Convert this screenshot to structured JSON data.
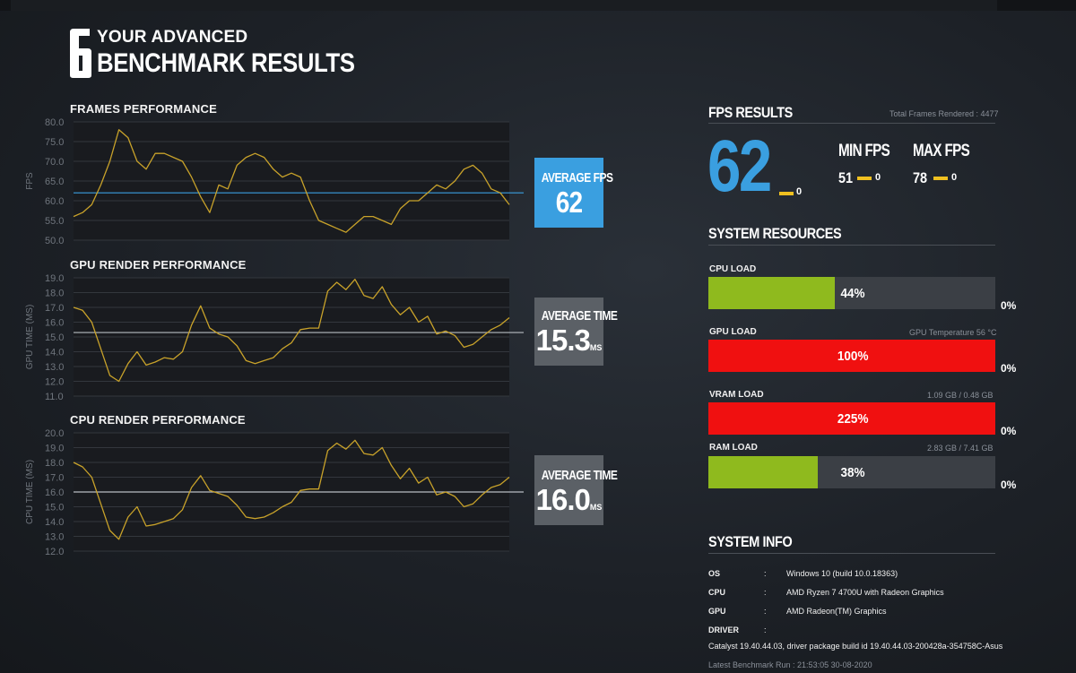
{
  "header": {
    "logo_digit": "6",
    "title_line1": "YOUR ADVANCED",
    "title_line2": "BENCHMARK RESULTS"
  },
  "colors": {
    "accent_blue": "#3a9fe0",
    "trace_gold": "#c8a22a",
    "load_green": "#8fba1e",
    "load_red": "#f01010",
    "badge_grey": "#5b6066"
  },
  "charts": {
    "frames": {
      "title": "FRAMES PERFORMANCE",
      "badge_label": "AVERAGE FPS",
      "badge_value": "62",
      "badge_unit": ""
    },
    "gpu": {
      "title": "GPU RENDER PERFORMANCE",
      "badge_label": "AVERAGE TIME",
      "badge_value": "15.3",
      "badge_unit": "MS"
    },
    "cpu": {
      "title": "CPU RENDER PERFORMANCE",
      "badge_label": "AVERAGE TIME",
      "badge_value": "16.0",
      "badge_unit": "MS"
    }
  },
  "chart_data": [
    {
      "type": "line",
      "id": "frames",
      "title": "FRAMES PERFORMANCE",
      "ylabel": "FPS",
      "ylim": [
        50,
        80
      ],
      "yticks": [
        "80.0",
        "75.0",
        "70.0",
        "65.0",
        "60.0",
        "55.0",
        "50.0"
      ],
      "grid": true,
      "average": 62,
      "x": [
        0,
        10,
        20,
        30,
        40,
        50,
        60,
        70,
        80,
        90,
        100,
        110,
        120,
        130,
        140,
        150,
        160,
        170,
        180,
        190,
        200,
        210,
        220,
        230,
        240,
        250,
        260,
        270,
        280,
        290,
        300,
        310,
        320,
        330,
        340,
        350,
        360,
        370,
        380,
        390,
        400,
        410,
        420,
        430,
        440,
        450,
        460,
        470,
        480
      ],
      "values": [
        56,
        57,
        59,
        64,
        70,
        78,
        76,
        70,
        68,
        72,
        72,
        71,
        70,
        66,
        61,
        57,
        64,
        63,
        69,
        71,
        72,
        71,
        68,
        66,
        67,
        66,
        60,
        55,
        54,
        53,
        52,
        54,
        56,
        56,
        55,
        54,
        58,
        60,
        60,
        62,
        64,
        63,
        65,
        68,
        69,
        67,
        63,
        62,
        59
      ]
    },
    {
      "type": "line",
      "id": "gpu",
      "title": "GPU RENDER PERFORMANCE",
      "ylabel": "GPU TIME (MS)",
      "ylim": [
        11,
        19
      ],
      "yticks": [
        "19.0",
        "18.0",
        "17.0",
        "16.0",
        "15.0",
        "14.0",
        "13.0",
        "12.0",
        "11.0"
      ],
      "grid": true,
      "average": 15.3,
      "x": [
        0,
        10,
        20,
        30,
        40,
        50,
        60,
        70,
        80,
        90,
        100,
        110,
        120,
        130,
        140,
        150,
        160,
        170,
        180,
        190,
        200,
        210,
        220,
        230,
        240,
        250,
        260,
        270,
        280,
        290,
        300,
        310,
        320,
        330,
        340,
        350,
        360,
        370,
        380,
        390,
        400,
        410,
        420,
        430,
        440,
        450,
        460,
        470,
        480
      ],
      "values": [
        17,
        16.8,
        16,
        14.2,
        12.4,
        12,
        13.2,
        14,
        13.1,
        13.3,
        13.6,
        13.5,
        14,
        15.8,
        17.1,
        15.6,
        15.2,
        15,
        14.4,
        13.4,
        13.2,
        13.4,
        13.6,
        14.2,
        14.6,
        15.5,
        15.6,
        15.6,
        18.1,
        18.7,
        18.2,
        18.9,
        17.8,
        17.6,
        18.4,
        17.2,
        16.5,
        17,
        16,
        16.4,
        15.2,
        15.4,
        15.1,
        14.3,
        14.5,
        15,
        15.5,
        15.8,
        16.3
      ]
    },
    {
      "type": "line",
      "id": "cpu",
      "title": "CPU RENDER PERFORMANCE",
      "ylabel": "CPU TIME (MS)",
      "ylim": [
        12,
        20
      ],
      "yticks": [
        "20.0",
        "19.0",
        "18.0",
        "17.0",
        "16.0",
        "15.0",
        "14.0",
        "13.0",
        "12.0"
      ],
      "grid": true,
      "average": 16.0,
      "x": [
        0,
        10,
        20,
        30,
        40,
        50,
        60,
        70,
        80,
        90,
        100,
        110,
        120,
        130,
        140,
        150,
        160,
        170,
        180,
        190,
        200,
        210,
        220,
        230,
        240,
        250,
        260,
        270,
        280,
        290,
        300,
        310,
        320,
        330,
        340,
        350,
        360,
        370,
        380,
        390,
        400,
        410,
        420,
        430,
        440,
        450,
        460,
        470,
        480
      ],
      "values": [
        18,
        17.7,
        17,
        15.2,
        13.4,
        12.8,
        14.3,
        15,
        13.7,
        13.8,
        14,
        14.2,
        14.8,
        16.3,
        17.1,
        16.1,
        15.9,
        15.7,
        15.1,
        14.3,
        14.2,
        14.3,
        14.6,
        15,
        15.3,
        16.1,
        16.2,
        16.2,
        18.8,
        19.3,
        18.9,
        19.5,
        18.6,
        18.5,
        19,
        17.8,
        16.9,
        17.6,
        16.6,
        17,
        15.8,
        16,
        15.7,
        15,
        15.2,
        15.8,
        16.3,
        16.5,
        17
      ]
    }
  ],
  "fps_results": {
    "title": "FPS RESULTS",
    "total_frames": "Total Frames Rendered : 4477",
    "average": "62",
    "average_delta": "0",
    "min_label": "MIN FPS",
    "min_value": "51",
    "min_delta": "0",
    "max_label": "MAX FPS",
    "max_value": "78",
    "max_delta": "0"
  },
  "system_resources": {
    "title": "SYSTEM RESOURCES",
    "cpu": {
      "label": "CPU LOAD",
      "value": "44%",
      "fraction": 0.44,
      "note": "",
      "delta": "0%"
    },
    "gpu": {
      "label": "GPU LOAD",
      "value": "100%",
      "fraction": 1.0,
      "note": "GPU Temperature 56 °C",
      "delta": "0%"
    },
    "vram": {
      "label": "VRAM LOAD",
      "value": "225%",
      "fraction": 1.0,
      "note": "1.09 GB / 0.48 GB",
      "delta": "0%"
    },
    "ram": {
      "label": "RAM LOAD",
      "value": "38%",
      "fraction": 0.38,
      "note": "2.83 GB / 7.41 GB",
      "delta": "0%"
    }
  },
  "system_info": {
    "title": "SYSTEM INFO",
    "os_label": "OS",
    "os_value": "Windows 10 (build 10.0.18363)",
    "cpu_label": "CPU",
    "cpu_value": "AMD Ryzen 7 4700U with Radeon Graphics",
    "gpu_label": "GPU",
    "gpu_value": "AMD Radeon(TM) Graphics",
    "driver_label": "DRIVER",
    "driver_value": "Catalyst 19.40.44.03, driver package build id 19.40.44.03-200428a-354758C-Asus",
    "colon": ":",
    "latest_run": "Latest Benchmark Run : 21:53:05 30-08-2020"
  }
}
